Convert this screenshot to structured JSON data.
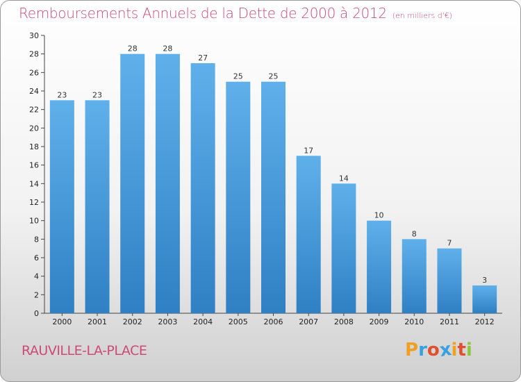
{
  "title": "Remboursements Annuels de la Dette de 2000 à 2012",
  "subtitle": "(en milliers d'€)",
  "commune": "RAUVILLE-LA-PLACE",
  "logo": {
    "letters": [
      "P",
      "r",
      "o",
      "x",
      "i",
      "t",
      "i"
    ],
    "colors": [
      "#f0a020",
      "#3aa0e0",
      "#e05030",
      "#3aa0e0",
      "#f0a020",
      "#e05030",
      "#8cc63f"
    ]
  },
  "colors": {
    "title": "#cc4a77",
    "bar_top": "#5fb0ea",
    "bar_bottom": "#2f80c4"
  },
  "chart_data": {
    "type": "bar",
    "title": "Remboursements Annuels de la Dette de 2000 à 2012",
    "subtitle": "(en milliers d'€)",
    "categories": [
      "2000",
      "2001",
      "2002",
      "2003",
      "2004",
      "2005",
      "2006",
      "2007",
      "2008",
      "2009",
      "2010",
      "2011",
      "2012"
    ],
    "values": [
      23,
      23,
      28,
      28,
      27,
      25,
      25,
      17,
      14,
      10,
      8,
      7,
      3
    ],
    "ylim": [
      0,
      30
    ],
    "yticks": [
      0,
      2,
      4,
      6,
      8,
      10,
      12,
      14,
      16,
      18,
      20,
      22,
      24,
      26,
      28,
      30
    ],
    "grid": false,
    "data_labels": true
  }
}
